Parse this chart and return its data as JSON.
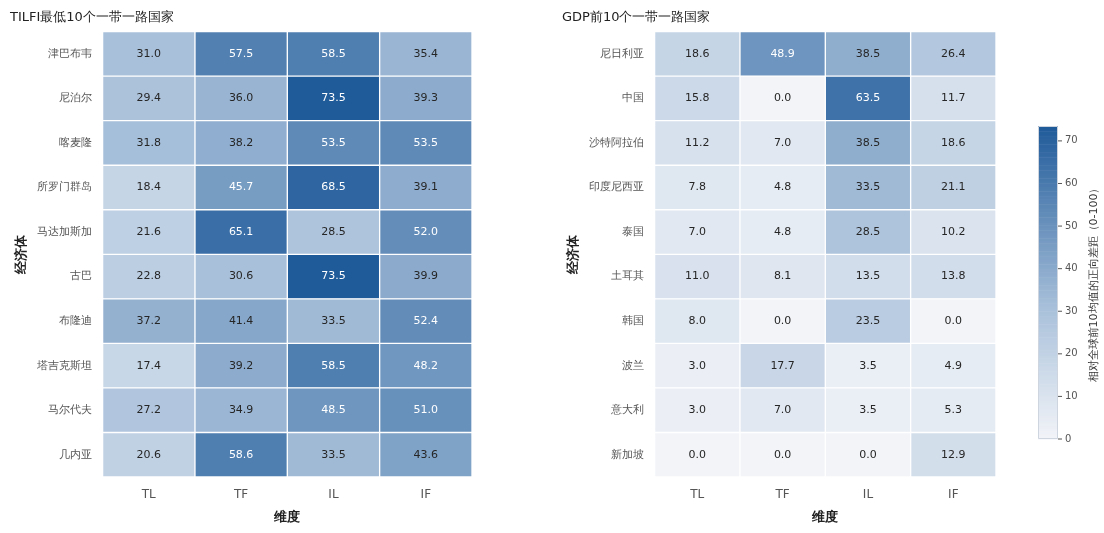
{
  "chart_data": [
    {
      "type": "heatmap",
      "title": "TILFI最低10个一带一路国家",
      "xlabel": "维度",
      "ylabel": "经济体",
      "categories": [
        "TL",
        "TF",
        "IL",
        "IF"
      ],
      "y_categories": [
        "津巴布韦",
        "尼泊尔",
        "喀麦隆",
        "所罗门群岛",
        "马达加斯加",
        "古巴",
        "布隆迪",
        "塔吉克斯坦",
        "马尔代夫",
        "几内亚"
      ],
      "cells": [
        [
          31.0,
          57.5,
          58.5,
          35.4
        ],
        [
          29.4,
          36.0,
          73.5,
          39.3
        ],
        [
          31.8,
          38.2,
          53.5,
          53.5
        ],
        [
          18.4,
          45.7,
          68.5,
          39.1
        ],
        [
          21.6,
          65.1,
          28.5,
          52.0
        ],
        [
          22.8,
          30.6,
          73.5,
          39.9
        ],
        [
          37.2,
          41.4,
          33.5,
          52.4
        ],
        [
          17.4,
          39.2,
          58.5,
          48.2
        ],
        [
          27.2,
          34.9,
          48.5,
          51.0
        ],
        [
          20.6,
          58.6,
          33.5,
          43.6
        ]
      ],
      "cell_labels": [
        [
          "31.0",
          "57.5",
          "58.5",
          "35.4"
        ],
        [
          "29.4",
          "36.0",
          "73.5",
          "39.3"
        ],
        [
          "31.8",
          "38.2",
          "53.5",
          "53.5"
        ],
        [
          "18.4",
          "45.7",
          "68.5",
          "39.1"
        ],
        [
          "21.6",
          "65.1",
          "28.5",
          "52.0"
        ],
        [
          "22.8",
          "30.6",
          "73.5",
          "39.9"
        ],
        [
          "37.2",
          "41.4",
          "33.5",
          "52.4"
        ],
        [
          "17.4",
          "39.2",
          "58.5",
          "48.2"
        ],
        [
          "27.2",
          "34.9",
          "48.5",
          "51.0"
        ],
        [
          "20.6",
          "58.6",
          "33.5",
          "43.6"
        ]
      ]
    },
    {
      "type": "heatmap",
      "title": "GDP前10个一带一路国家",
      "xlabel": "维度",
      "ylabel": "经济体",
      "clabel": "相对全球前10均值的正向差距（0-100）",
      "categories": [
        "TL",
        "TF",
        "IL",
        "IF"
      ],
      "y_categories": [
        "尼日利亚",
        "中国",
        "沙特阿拉伯",
        "印度尼西亚",
        "泰国",
        "土耳其",
        "韩国",
        "波兰",
        "意大利",
        "新加坡"
      ],
      "cells": [
        [
          18.6,
          48.9,
          38.5,
          26.4
        ],
        [
          15.8,
          0.0,
          63.5,
          11.7
        ],
        [
          11.2,
          7.0,
          38.5,
          18.6
        ],
        [
          7.8,
          4.8,
          33.5,
          21.1
        ],
        [
          7.0,
          4.8,
          28.5,
          10.2
        ],
        [
          11.0,
          8.1,
          13.5,
          13.8
        ],
        [
          8.0,
          0.0,
          23.5,
          0.0
        ],
        [
          3.0,
          17.7,
          3.5,
          4.9
        ],
        [
          3.0,
          7.0,
          3.5,
          5.3
        ],
        [
          0.0,
          0.0,
          0.0,
          12.9
        ]
      ],
      "cell_labels": [
        [
          "18.6",
          "48.9",
          "38.5",
          "26.4"
        ],
        [
          "15.8",
          "0.0",
          "63.5",
          "11.7"
        ],
        [
          "11.2",
          "7.0",
          "38.5",
          "18.6"
        ],
        [
          "7.8",
          "4.8",
          "33.5",
          "21.1"
        ],
        [
          "7.0",
          "4.8",
          "28.5",
          "10.2"
        ],
        [
          "11.0",
          "8.1",
          "13.5",
          "13.8"
        ],
        [
          "8.0",
          "0.0",
          "23.5",
          "0.0"
        ],
        [
          "3.0",
          "17.7",
          "3.5",
          "4.9"
        ],
        [
          "3.0",
          "7.0",
          "3.5",
          "5.3"
        ],
        [
          "0.0",
          "0.0",
          "0.0",
          "12.9"
        ]
      ],
      "clim": [
        0,
        73.5
      ],
      "cticks": [
        0,
        10,
        20,
        30,
        40,
        50,
        60,
        70
      ]
    }
  ]
}
